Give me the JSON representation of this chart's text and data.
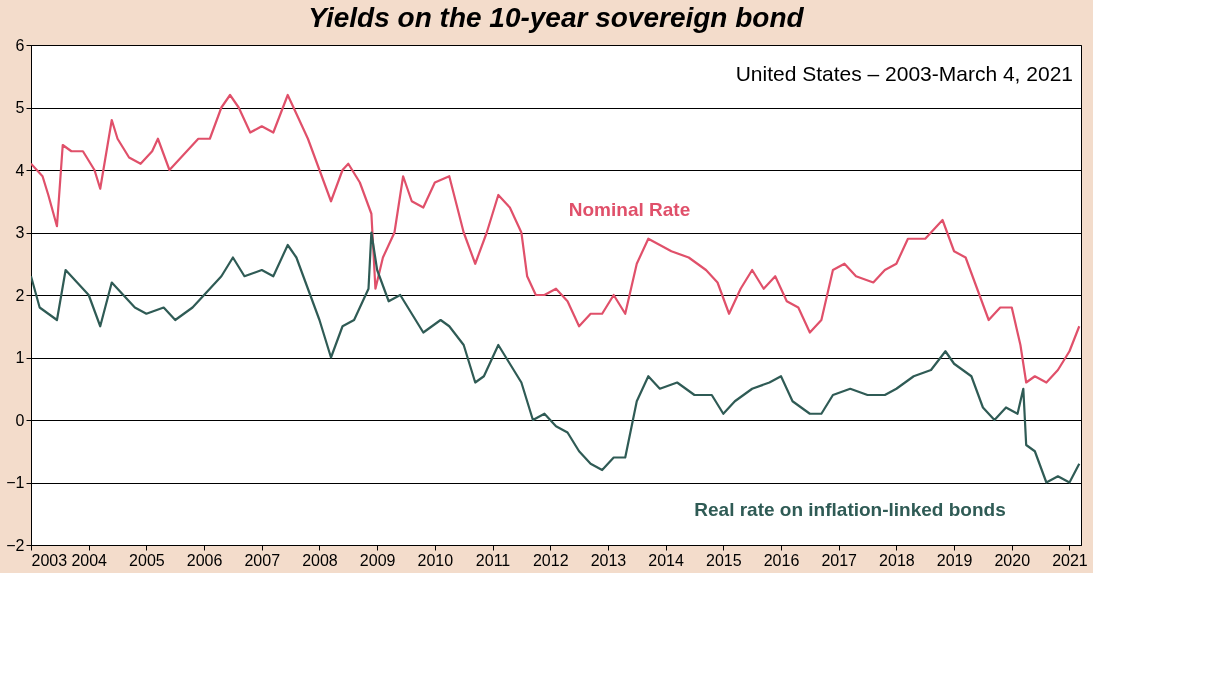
{
  "chart_data": {
    "type": "line",
    "title": "Yields on the 10-year sovereign bond",
    "annotations": [
      "United States – 2003-March 4, 2021"
    ],
    "xlim": [
      2003,
      2021.2
    ],
    "xticks": [
      2003,
      2004,
      2005,
      2006,
      2007,
      2008,
      2009,
      2010,
      2011,
      2012,
      2013,
      2014,
      2015,
      2016,
      2017,
      2018,
      2019,
      2020,
      2021
    ],
    "ylim": [
      -2,
      6
    ],
    "yticks": [
      -2,
      -1,
      0,
      1,
      2,
      3,
      4,
      5,
      6
    ],
    "grid": "y",
    "marker": "none",
    "line_style": "solid",
    "series": [
      {
        "name": "Nominal Rate",
        "color": "#e0506a",
        "x": [
          2003.0,
          2003.2,
          2003.3,
          2003.45,
          2003.55,
          2003.7,
          2003.9,
          2004.1,
          2004.2,
          2004.4,
          2004.5,
          2004.7,
          2004.9,
          2005.1,
          2005.2,
          2005.4,
          2005.5,
          2005.7,
          2005.9,
          2006.1,
          2006.3,
          2006.45,
          2006.6,
          2006.8,
          2007.0,
          2007.2,
          2007.45,
          2007.6,
          2007.8,
          2008.0,
          2008.2,
          2008.4,
          2008.5,
          2008.7,
          2008.9,
          2008.97,
          2009.1,
          2009.3,
          2009.45,
          2009.6,
          2009.8,
          2010.0,
          2010.25,
          2010.5,
          2010.7,
          2010.9,
          2011.1,
          2011.3,
          2011.5,
          2011.6,
          2011.75,
          2011.9,
          2012.1,
          2012.3,
          2012.5,
          2012.7,
          2012.9,
          2013.1,
          2013.3,
          2013.5,
          2013.7,
          2013.9,
          2014.1,
          2014.4,
          2014.7,
          2014.9,
          2015.1,
          2015.3,
          2015.5,
          2015.7,
          2015.9,
          2016.1,
          2016.3,
          2016.5,
          2016.7,
          2016.9,
          2017.1,
          2017.3,
          2017.6,
          2017.8,
          2018.0,
          2018.2,
          2018.5,
          2018.8,
          2019.0,
          2019.2,
          2019.4,
          2019.6,
          2019.8,
          2020.0,
          2020.15,
          2020.25,
          2020.4,
          2020.6,
          2020.8,
          2021.0,
          2021.17
        ],
        "values": [
          4.1,
          3.9,
          3.6,
          3.1,
          4.4,
          4.3,
          4.3,
          4.0,
          3.7,
          4.8,
          4.5,
          4.2,
          4.1,
          4.3,
          4.5,
          4.0,
          4.1,
          4.3,
          4.5,
          4.5,
          5.0,
          5.2,
          5.0,
          4.6,
          4.7,
          4.6,
          5.2,
          4.9,
          4.5,
          4.0,
          3.5,
          4.0,
          4.1,
          3.8,
          3.3,
          2.1,
          2.6,
          3.0,
          3.9,
          3.5,
          3.4,
          3.8,
          3.9,
          3.0,
          2.5,
          3.0,
          3.6,
          3.4,
          3.0,
          2.3,
          2.0,
          2.0,
          2.1,
          1.9,
          1.5,
          1.7,
          1.7,
          2.0,
          1.7,
          2.5,
          2.9,
          2.8,
          2.7,
          2.6,
          2.4,
          2.2,
          1.7,
          2.1,
          2.4,
          2.1,
          2.3,
          1.9,
          1.8,
          1.4,
          1.6,
          2.4,
          2.5,
          2.3,
          2.2,
          2.4,
          2.5,
          2.9,
          2.9,
          3.2,
          2.7,
          2.6,
          2.1,
          1.6,
          1.8,
          1.8,
          1.2,
          0.6,
          0.7,
          0.6,
          0.8,
          1.1,
          1.5
        ]
      },
      {
        "name": "Real rate on inflation-linked bonds",
        "color": "#2f5b55",
        "x": [
          2003.0,
          2003.15,
          2003.3,
          2003.45,
          2003.6,
          2003.8,
          2004.0,
          2004.2,
          2004.4,
          2004.6,
          2004.8,
          2005.0,
          2005.3,
          2005.5,
          2005.8,
          2006.0,
          2006.3,
          2006.5,
          2006.7,
          2007.0,
          2007.2,
          2007.45,
          2007.6,
          2007.8,
          2008.0,
          2008.2,
          2008.4,
          2008.6,
          2008.85,
          2008.9,
          2009.0,
          2009.2,
          2009.4,
          2009.6,
          2009.8,
          2010.1,
          2010.25,
          2010.5,
          2010.7,
          2010.85,
          2011.1,
          2011.3,
          2011.5,
          2011.7,
          2011.9,
          2012.1,
          2012.3,
          2012.5,
          2012.7,
          2012.9,
          2013.1,
          2013.3,
          2013.5,
          2013.7,
          2013.9,
          2014.2,
          2014.5,
          2014.8,
          2015.0,
          2015.2,
          2015.5,
          2015.8,
          2016.0,
          2016.2,
          2016.5,
          2016.7,
          2016.9,
          2017.2,
          2017.5,
          2017.8,
          2018.0,
          2018.3,
          2018.6,
          2018.85,
          2019.0,
          2019.3,
          2019.5,
          2019.7,
          2019.9,
          2020.1,
          2020.2,
          2020.25,
          2020.4,
          2020.6,
          2020.8,
          2021.0,
          2021.17
        ],
        "values": [
          2.3,
          1.8,
          1.7,
          1.6,
          2.4,
          2.2,
          2.0,
          1.5,
          2.2,
          2.0,
          1.8,
          1.7,
          1.8,
          1.6,
          1.8,
          2.0,
          2.3,
          2.6,
          2.3,
          2.4,
          2.3,
          2.8,
          2.6,
          2.1,
          1.6,
          1.0,
          1.5,
          1.6,
          2.1,
          3.0,
          2.4,
          1.9,
          2.0,
          1.7,
          1.4,
          1.6,
          1.5,
          1.2,
          0.6,
          0.7,
          1.2,
          0.9,
          0.6,
          0.0,
          0.1,
          -0.1,
          -0.2,
          -0.5,
          -0.7,
          -0.8,
          -0.6,
          -0.6,
          0.3,
          0.7,
          0.5,
          0.6,
          0.4,
          0.4,
          0.1,
          0.3,
          0.5,
          0.6,
          0.7,
          0.3,
          0.1,
          0.1,
          0.4,
          0.5,
          0.4,
          0.4,
          0.5,
          0.7,
          0.8,
          1.1,
          0.9,
          0.7,
          0.2,
          0.0,
          0.2,
          0.1,
          0.5,
          -0.4,
          -0.5,
          -1.0,
          -0.9,
          -1.0,
          -0.7
        ]
      }
    ]
  }
}
